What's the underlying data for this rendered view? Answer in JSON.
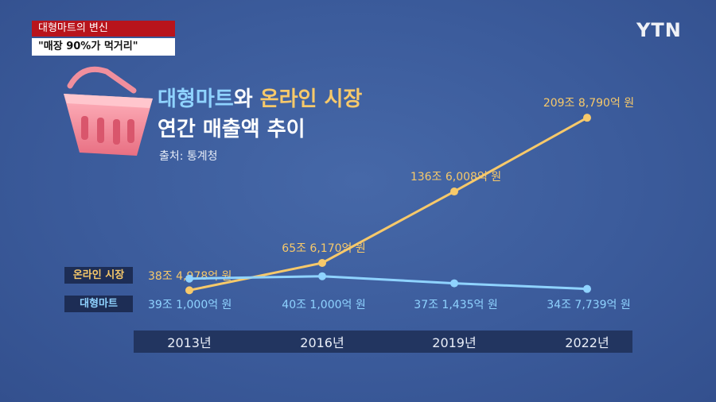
{
  "header": {
    "topic": "대형마트의 변신",
    "headline": "\"매장 90%가 먹거리\"",
    "logo": "YTN"
  },
  "title": {
    "part1": "대형마트",
    "part2": "와 ",
    "part3": "온라인 시장",
    "line2": "연간 매출액 추이",
    "source": "출처: 통계청"
  },
  "colors": {
    "online": "#f7c96a",
    "mart": "#8fd3ff"
  },
  "chart_data": {
    "type": "line",
    "x": [
      "2013년",
      "2016년",
      "2019년",
      "2022년"
    ],
    "series": [
      {
        "name": "온라인 시장",
        "values": [
          38.4978,
          65.617,
          136.6008,
          209.879
        ],
        "labels": [
          "38조 4,978억 원",
          "65조 6,170억 원",
          "136조 6,008억 원",
          "209조 8,790억 원"
        ]
      },
      {
        "name": "대형마트",
        "values": [
          39.1,
          40.1,
          37.1435,
          34.7739
        ],
        "labels": [
          "39조 1,000억 원",
          "40조 1,000억 원",
          "37조 1,435억 원",
          "34조 7,739억 원"
        ]
      }
    ],
    "ylim": [
      38,
      210
    ],
    "grid": false,
    "icon": "shopping-basket-icon"
  }
}
